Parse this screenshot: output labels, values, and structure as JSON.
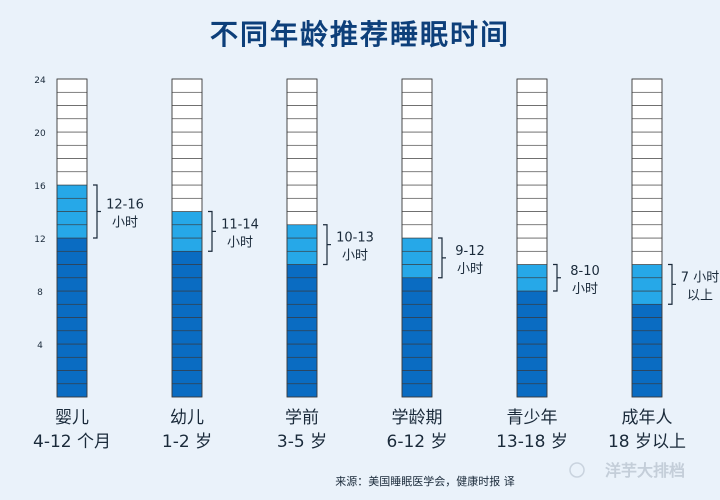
{
  "chart_data": {
    "type": "bar",
    "title": "不同年龄推荐睡眠时间",
    "ylim": [
      0,
      24
    ],
    "y_ticks": [
      "4",
      "8",
      "12",
      "16",
      "20",
      "24"
    ],
    "categories": [
      {
        "name": "婴儿",
        "age": "4-12 个月",
        "min": 12,
        "max": 16,
        "range_label": "12-16",
        "unit_label": "小时"
      },
      {
        "name": "幼儿",
        "age": "1-2 岁",
        "min": 11,
        "max": 14,
        "range_label": "11-14",
        "unit_label": "小时"
      },
      {
        "name": "学前",
        "age": "3-5 岁",
        "min": 10,
        "max": 13,
        "range_label": "10-13",
        "unit_label": "小时"
      },
      {
        "name": "学龄期",
        "age": "6-12 岁",
        "min": 9,
        "max": 12,
        "range_label": "9-12",
        "unit_label": "小时"
      },
      {
        "name": "青少年",
        "age": "13-18 岁",
        "min": 8,
        "max": 10,
        "range_label": "8-10",
        "unit_label": "小时"
      },
      {
        "name": "成年人",
        "age": "18 岁以上",
        "min": 7,
        "max": 10,
        "range_label": "7 小时",
        "unit_label": "以上"
      }
    ],
    "colors": {
      "base": "#0a6cc2",
      "range": "#26a8e8",
      "empty": "#ffffff",
      "grid": "#3a3a3a",
      "text": "#1a2a3a",
      "title": "#0d3f7a"
    }
  },
  "source_note": "来源：美国睡眠医学会，健康时报 译",
  "watermark": "洋芋大排档"
}
